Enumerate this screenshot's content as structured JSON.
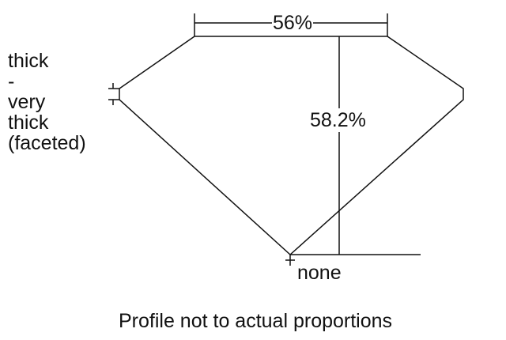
{
  "girdle_label": [
    "thick",
    "-",
    "very",
    "thick",
    "(faceted)"
  ],
  "table_label": "56%",
  "depth_label": "58.2%",
  "culet_label": "none",
  "note": "Profile not to actual proportions",
  "line_color": "#111111"
}
